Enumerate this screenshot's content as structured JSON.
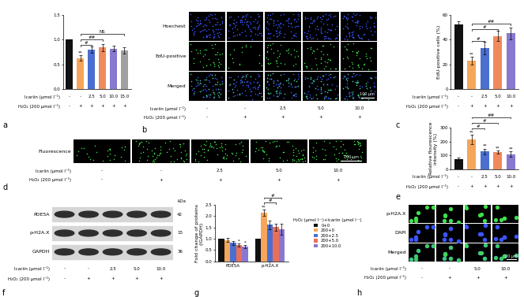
{
  "chart_data": [
    {
      "panel": "a",
      "type": "bar",
      "categories": [
        null,
        null,
        null,
        null,
        null,
        null
      ],
      "conditions": [
        {
          "label": "Icariin (μmol l⁻¹)",
          "values": [
            "-",
            "-",
            "2.5",
            "5.0",
            "10.0",
            "15.0"
          ]
        },
        {
          "label": "H₂O₂ (200 μmol l⁻¹)",
          "values": [
            "-",
            "+",
            "+",
            "+",
            "+",
            "+"
          ]
        }
      ],
      "values": [
        1.0,
        0.63,
        0.8,
        0.84,
        0.82,
        0.78
      ],
      "errors": [
        0.0,
        0.05,
        0.06,
        0.07,
        0.06,
        0.06
      ],
      "colors": [
        "#111111",
        "#f5a65b",
        "#4a6fd1",
        "#f08a5d",
        "#8878d0",
        "#a0a0a0"
      ],
      "ylim": [
        0.0,
        1.5
      ],
      "yticks": [
        0.0,
        0.5,
        1.0,
        1.5
      ],
      "annotations": [
        {
          "index": 1,
          "text": "**"
        }
      ],
      "comparisons": [
        {
          "from": 1,
          "to": 2,
          "text": "#"
        },
        {
          "from": 1,
          "to": 3,
          "text": "##"
        },
        {
          "from": 1,
          "to": 5,
          "text": "NS"
        }
      ]
    },
    {
      "panel": "c",
      "type": "bar",
      "y_label": "EdU-positive cells (%)",
      "categories": [
        null,
        null,
        null,
        null,
        null
      ],
      "conditions": [
        {
          "label": "Icariin (μmol l⁻¹)",
          "values": [
            "-",
            "-",
            "2.5",
            "5.0",
            "10.0"
          ]
        },
        {
          "label": "H₂O₂ (200 μmol l⁻¹)",
          "values": [
            "-",
            "+",
            "+",
            "+",
            "+"
          ]
        }
      ],
      "values": [
        52,
        23,
        33,
        43,
        45
      ],
      "errors": [
        3,
        3,
        5,
        4,
        5
      ],
      "colors": [
        "#111111",
        "#f5a65b",
        "#4a6fd1",
        "#f08a5d",
        "#8878d0"
      ],
      "ylim": [
        0,
        60
      ],
      "yticks": [
        0,
        20,
        40,
        60
      ],
      "annotations": [
        {
          "index": 1,
          "text": "**"
        }
      ],
      "comparisons": [
        {
          "from": 1,
          "to": 2,
          "text": "#"
        },
        {
          "from": 1,
          "to": 3,
          "text": "#"
        },
        {
          "from": 1,
          "to": 4,
          "text": "##"
        }
      ]
    },
    {
      "panel": "e",
      "type": "bar",
      "y_label": "Relative flourescence\nintensity (%)",
      "categories": [
        null,
        null,
        null,
        null,
        null
      ],
      "conditions": [
        {
          "label": "Icariin (μmol l⁻¹)",
          "values": [
            "-",
            "-",
            "2.5",
            "5.0",
            "10.0"
          ]
        },
        {
          "label": "H₂O₂ (200 μmol l⁻¹)",
          "values": [
            "-",
            "+",
            "+",
            "+",
            "+"
          ]
        }
      ],
      "values": [
        75,
        215,
        130,
        125,
        110
      ],
      "errors": [
        8,
        35,
        20,
        12,
        18
      ],
      "colors": [
        "#111111",
        "#f5a65b",
        "#4a6fd1",
        "#f08a5d",
        "#8878d0"
      ],
      "ylim": [
        0,
        300
      ],
      "yticks": [
        0,
        100,
        200,
        300
      ],
      "annotations": [
        {
          "index": 1,
          "text": "**"
        },
        {
          "index": 2,
          "text": "**"
        },
        {
          "index": 3,
          "text": "**"
        },
        {
          "index": 4,
          "text": "**"
        }
      ],
      "comparisons": [
        {
          "from": 1,
          "to": 2,
          "text": "#"
        },
        {
          "from": 1,
          "to": 3,
          "text": "#"
        },
        {
          "from": 1,
          "to": 4,
          "text": "##"
        }
      ]
    },
    {
      "panel": "g",
      "type": "bar",
      "y_label": "Fold change of proteins\n(/GAPDH)",
      "categories": [
        "PDE5A",
        "p-H2A.X"
      ],
      "legend": "right",
      "legend_title": "H₂O₂ (μmol l⁻¹)+Icariin (μmol l⁻¹)",
      "series": [
        {
          "name": "0+0",
          "color": "#111111",
          "values": [
            1.0,
            1.0
          ],
          "errors": [
            0.0,
            0.0
          ]
        },
        {
          "name": "200+0",
          "color": "#f5a65b",
          "values": [
            0.95,
            2.15
          ],
          "errors": [
            0.1,
            0.15
          ]
        },
        {
          "name": "200+2.5",
          "color": "#4a6fd1",
          "values": [
            0.82,
            1.62
          ],
          "errors": [
            0.08,
            0.2
          ]
        },
        {
          "name": "200+5.0",
          "color": "#e8705a",
          "values": [
            0.72,
            1.52
          ],
          "errors": [
            0.08,
            0.15
          ]
        },
        {
          "name": "200+10.0",
          "color": "#8878d0",
          "values": [
            0.65,
            1.42
          ],
          "errors": [
            0.06,
            0.25
          ]
        }
      ],
      "ylim": [
        0.0,
        2.5
      ],
      "yticks": [
        0.0,
        0.5,
        1.0,
        1.5,
        2.0,
        2.5
      ],
      "annotations": [
        {
          "category": 0,
          "series": 3,
          "text": "*"
        },
        {
          "category": 0,
          "series": 4,
          "text": "*"
        },
        {
          "category": 1,
          "series": 1,
          "text": "**"
        }
      ],
      "comparisons": [
        {
          "category": 1,
          "from": 1,
          "to": 3,
          "text": "#"
        },
        {
          "category": 1,
          "from": 1,
          "to": 4,
          "text": "#"
        }
      ]
    }
  ],
  "images": [
    {
      "panel": "b",
      "rows": [
        "Hoechest",
        "EdU-positive",
        "Merged"
      ],
      "scale_bar": "100 μm",
      "conditions": [
        {
          "label": "Icariin (μmol l⁻¹)",
          "values": [
            "-",
            "-",
            "2.5",
            "5.0",
            "10.0"
          ]
        },
        {
          "label": "H₂O₂ (200 μmol l⁻¹)",
          "values": [
            "-",
            "+",
            "+",
            "+",
            "+"
          ]
        }
      ]
    },
    {
      "panel": "d",
      "rows": [
        "Fluorescence"
      ],
      "scale_bar": "100 μm",
      "conditions": [
        {
          "label": "Icariin (μmol l⁻¹)",
          "values": [
            "-",
            "-",
            "2.5",
            "5.0",
            "10.0"
          ]
        },
        {
          "label": "H₂O₂ (200 μmol l⁻¹)",
          "values": [
            "-",
            "+",
            "+",
            "+",
            "+"
          ]
        }
      ]
    },
    {
      "panel": "h",
      "rows": [
        "p-H2A.X",
        "DAPI",
        "Merged"
      ],
      "scale_bar": "20 μm",
      "conditions": [
        {
          "label": "Icariin (μmol l⁻¹)",
          "values": [
            "-",
            "-",
            "5.0",
            "10.0"
          ]
        },
        {
          "label": "H₂O₂ (200 μmol l⁻¹)",
          "values": [
            "-",
            "+",
            "+",
            "+"
          ]
        }
      ]
    }
  ],
  "blot": {
    "panel": "f",
    "unit": "kDa",
    "rows": [
      {
        "label": "PDE5A",
        "size": 42
      },
      {
        "label": "p-H2A.X",
        "size": 15
      },
      {
        "label": "GAPDH",
        "size": 36
      }
    ],
    "conditions": [
      {
        "label": "Icariin (μmol l⁻¹)",
        "values": [
          "-",
          "-",
          "2.5",
          "5.0",
          "10.0"
        ]
      },
      {
        "label": "H₂O₂ (200 μmol l⁻¹)",
        "values": [
          "-",
          "+",
          "+",
          "+",
          "+"
        ]
      }
    ]
  }
}
